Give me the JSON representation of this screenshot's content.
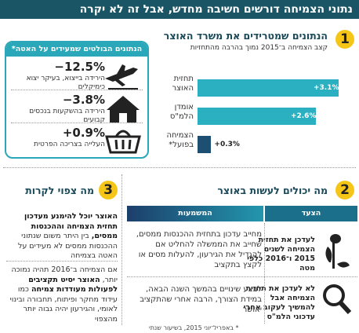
{
  "header": {
    "title": "נתוני הצמיחה דורשים חשיבה מחדש, אבל זה לא יקרה"
  },
  "chart_data": {
    "type": "bar",
    "number": "1",
    "title": "הנתונים שמטרידים את משרד האוצר",
    "subtitle": "קצב הצמיחה ב־2015 נמוך בהרבה מהתחזיות",
    "categories": [
      "תחזית האוצר",
      "אומדן הלמ\"ס",
      "הצמיחה בפועל*"
    ],
    "values": [
      3.1,
      2.6,
      0.3
    ],
    "value_labels": [
      "+3.1%",
      "+2.6%",
      "+0.3%"
    ],
    "colors": [
      "#2ab0c0",
      "#2ab0c0",
      "#1d4f72"
    ]
  },
  "highlights": {
    "title": "הנתונים הבולטים שמעידים על האטה*",
    "items": [
      {
        "value": "−12.5%",
        "label": "הירידה בייצוא, בעיקר יצוא כימיקלים"
      },
      {
        "value": "−3.8%",
        "label": "הירידה בהשקעות בנכסים קבועים"
      },
      {
        "value": "+0.9%",
        "label": "העלייה בצריכה הפרטית"
      }
    ]
  },
  "section2": {
    "number": "2",
    "title": "מה יכולים לעשות באוצר",
    "columns": [
      "הצעד",
      "המשמעות"
    ],
    "rows": [
      {
        "step": "לעדכן את תחזית הצמיחה לשנים 2015 ו־2016 כלפי מטה",
        "meaning": "מחייב עדכון בתחזית ההכנסות ממסים, שחייב את הממשלה להחליט אם להגדיל את הגירעון, להעלות מסים או לקצץ בתקציב"
      },
      {
        "step": "לא לעדכן את תחזית הצמיחה אבל להמשיך לעקוב אחרי עדכוני הלמ\"ס",
        "meaning": "לבצע שינויים בהמשך השנה הבאה, במידת הצורך, הרבה אחרי שהתקציב יאושר"
      }
    ]
  },
  "section3": {
    "number": "3",
    "title": "מה צפוי לקרות",
    "paragraphs": [
      [
        {
          "text": "האוצר יוכל להימנע מעדכון תחזית הצמיחה וההכנסות ממסים,",
          "bold": true
        },
        {
          "text": " בין היתר משום שנתוני ההכנסות ממסים לא מעידים על האטה בצמיחה",
          "bold": false
        }
      ],
      [
        {
          "text": "אם הצמיחה ב־2016 תהיה נמוכה יותר, ",
          "bold": false
        },
        {
          "text": "האוצר יסיט תקציבים לפעולות מעודדות צמיחה",
          "bold": true
        },
        {
          "text": " כמו עידוד מחקר ופיתוח, תחבורה ובינוי לאומי, והגירעון יהיה גבוה יותר מהצפוי",
          "bold": false
        }
      ]
    ]
  },
  "footer": {
    "note": "* באפריל־יוני 2015, בשיעור שנתי"
  }
}
